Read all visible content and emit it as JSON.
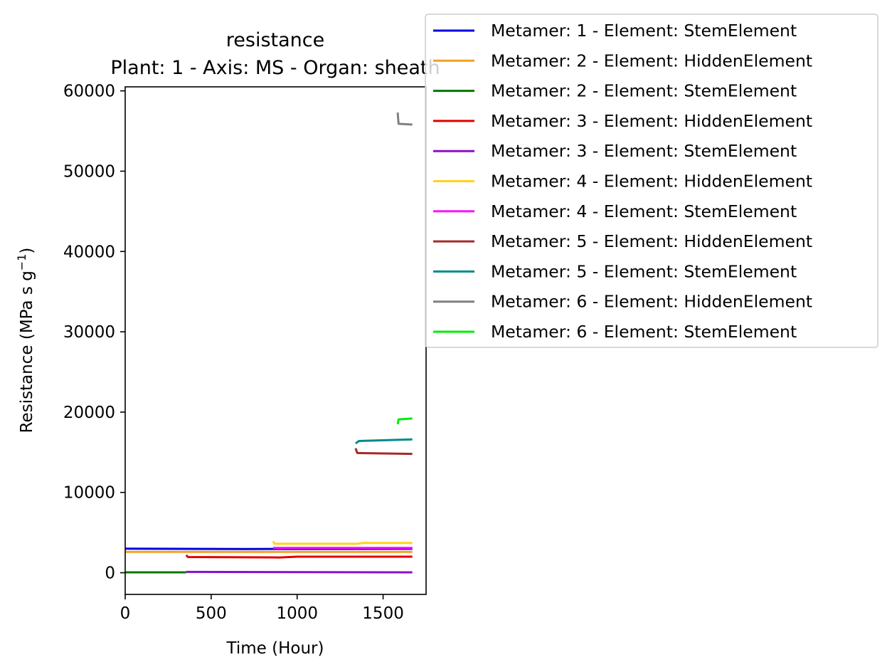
{
  "chart_data": {
    "type": "line",
    "title": "resistance",
    "subtitle": "Plant: 1 - Axis: MS - Organ: sheath",
    "xlabel": "Time (Hour)",
    "ylabel_main": "Resistance (MPa s g",
    "ylabel_exp": "−1",
    "ylabel_close": ")",
    "xlim": [
      0,
      1750
    ],
    "ylim": [
      -2700,
      60500
    ],
    "xticks": [
      0,
      500,
      1000,
      1500
    ],
    "xtick_labels": [
      "0",
      "500",
      "1000",
      "1500"
    ],
    "yticks": [
      0,
      10000,
      20000,
      30000,
      40000,
      50000,
      60000
    ],
    "ytick_labels": [
      "0",
      "10000",
      "20000",
      "30000",
      "40000",
      "50000",
      "60000"
    ],
    "legend_position": "upper-right-outside",
    "series": [
      {
        "name": "Metamer: 1 - Element: StemElement",
        "color": "#0000dd",
        "points": [
          [
            0,
            3000
          ],
          [
            700,
            2950
          ],
          [
            860,
            2960
          ],
          [
            1670,
            2980
          ]
        ]
      },
      {
        "name": "Metamer: 2 - Element: HiddenElement",
        "color": "#f5a020",
        "points": [
          [
            0,
            2600
          ],
          [
            1670,
            2600
          ]
        ]
      },
      {
        "name": "Metamer: 2 - Element: StemElement",
        "color": "#007800",
        "points": [
          [
            0,
            50
          ],
          [
            355,
            50
          ]
        ]
      },
      {
        "name": "Metamer: 3 - Element: HiddenElement",
        "color": "#e00000",
        "points": [
          [
            355,
            2200
          ],
          [
            365,
            1950
          ],
          [
            900,
            1900
          ],
          [
            1000,
            2000
          ],
          [
            1670,
            2000
          ]
        ]
      },
      {
        "name": "Metamer: 3 - Element: StemElement",
        "color": "#8a10c8",
        "points": [
          [
            355,
            100
          ],
          [
            1670,
            50
          ]
        ]
      },
      {
        "name": "Metamer: 4 - Element: HiddenElement",
        "color": "#ffd21a",
        "points": [
          [
            860,
            3900
          ],
          [
            870,
            3600
          ],
          [
            1350,
            3600
          ],
          [
            1380,
            3700
          ],
          [
            1670,
            3700
          ]
        ]
      },
      {
        "name": "Metamer: 4 - Element: StemElement",
        "color": "#ff10ff",
        "points": [
          [
            860,
            3100
          ],
          [
            1670,
            3100
          ]
        ]
      },
      {
        "name": "Metamer: 5 - Element: HiddenElement",
        "color": "#a52a2a",
        "points": [
          [
            1340,
            15500
          ],
          [
            1350,
            14900
          ],
          [
            1670,
            14800
          ]
        ]
      },
      {
        "name": "Metamer: 5 - Element: StemElement",
        "color": "#008b8b",
        "points": [
          [
            1340,
            16100
          ],
          [
            1360,
            16400
          ],
          [
            1670,
            16600
          ]
        ]
      },
      {
        "name": "Metamer: 6 - Element: HiddenElement",
        "color": "#808080",
        "points": [
          [
            1585,
            57300
          ],
          [
            1590,
            55900
          ],
          [
            1670,
            55800
          ]
        ]
      },
      {
        "name": "Metamer: 6 - Element: StemElement",
        "color": "#00ee00",
        "points": [
          [
            1585,
            18500
          ],
          [
            1590,
            19100
          ],
          [
            1670,
            19200
          ]
        ]
      }
    ]
  }
}
